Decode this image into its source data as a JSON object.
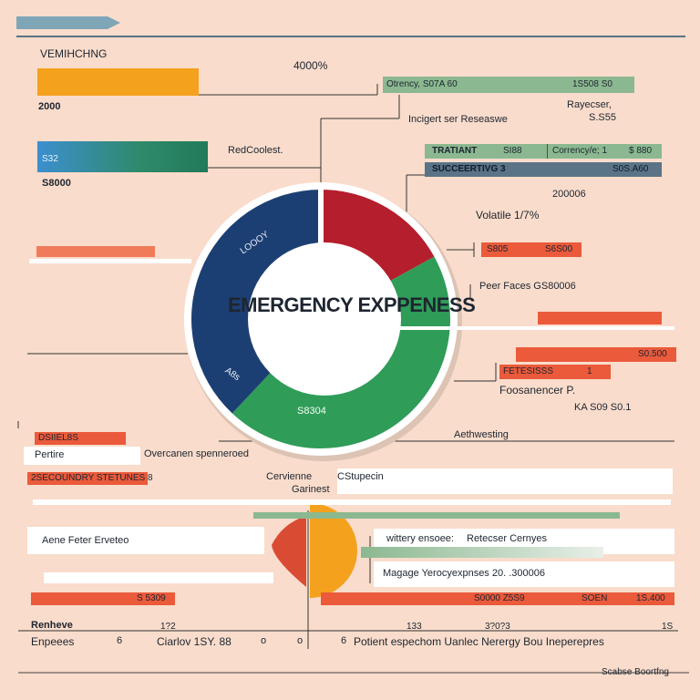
{
  "chart_data": {
    "type": "pie",
    "title": "EMERGENCY EXPPENESS",
    "slices": [
      {
        "label": "LOOOY",
        "value": 38,
        "color": "#1c3f73"
      },
      {
        "label": "",
        "value": 17,
        "color": "#b51e2c"
      },
      {
        "label": "S8304",
        "value": 45,
        "color": "#2f9c58"
      }
    ],
    "inner_label_extra": "A8s",
    "small_pie": [
      {
        "value": 50,
        "color": "#f4a11d"
      },
      {
        "value": 50,
        "color": "#d94b33"
      }
    ],
    "bars_left": [
      {
        "label": "VEMIHCHNG",
        "value": "2000",
        "color": "#f4a11d"
      },
      {
        "label": "S32",
        "value": "S8000",
        "color": "#2f8aa8"
      }
    ]
  },
  "header": {
    "title_left": "VEMIHCHNG",
    "value_left_1": "2000",
    "value_top_center": "4000%"
  },
  "labels": {
    "currency_left": "Otrency, S07A 60",
    "currency_right": "1S508 S0",
    "rayecser": "Rayecser,",
    "rayecser_val": "S.S55",
    "budget": "Incigert ser Reseaswe",
    "red_coolest": "RedCoolest.",
    "bar_s32": "S32",
    "bar_s8000": "S8000",
    "tratant": "TRATIANT",
    "tratant_mid": "SI88",
    "currency_mid": "Corrency/e; 1",
    "currency_mid_val": "$ 880",
    "succeeding": "SUCCEERTIVG 3",
    "succeeding_val": "S0S.A60",
    "v200006": "200006",
    "volatile": "Volatile 1/7%",
    "s805": "S805",
    "s6800": "S6S00",
    "peer_faces": "Peer Faces GS80006",
    "s0500": "S0.500",
    "retesiss": "FETESISSS",
    "retesiss_num": "1",
    "foosament": "Foosanencer P.",
    "ka": "KA S09 S0.1",
    "aethwesting": "Aethwesting",
    "dsiil": "DSIIEL8S",
    "pertire": "Pertire",
    "overcanen": "Overcanen spenneroed",
    "secondary": "2SECOUNDRY STETUNES 8",
    "cervimen": "Cervienne",
    "cstrepein": "CStupecin",
    "garinest": "Garinest",
    "aene": "Aene Feter Erveteo",
    "wittey": "wittery ensoee:",
    "reteoon": "Retecser Cernyes",
    "magage": "Magage Yerocyexpnses 20. .300006",
    "s5309": "S 5309",
    "s0000": "S0000 Z5S9",
    "soen": "SOEN",
    "v1s400": "1S.400",
    "renheve": "Renheve",
    "expeees": "Enpeees",
    "t1a": "1?2",
    "t1b": "133",
    "t1c": "3?0?3",
    "t1d": "1S",
    "tick_6": "6",
    "cianov": "Ciarlov 1SY. 88",
    "tick_o1": "o",
    "tick_o2": "o",
    "tick_6b": "6",
    "potient": "Potient espechom Uanlec Nerergy Bou Ineperepres",
    "footer": "Scabse Boortfng"
  },
  "colors": {
    "bg": "#f9dccb",
    "navy": "#1c3f73",
    "red": "#b51e2c",
    "green": "#2f9c58",
    "orange": "#f4a11d",
    "coral": "#ea5a3b",
    "sage": "#8bb890",
    "slate": "#5a7386"
  }
}
